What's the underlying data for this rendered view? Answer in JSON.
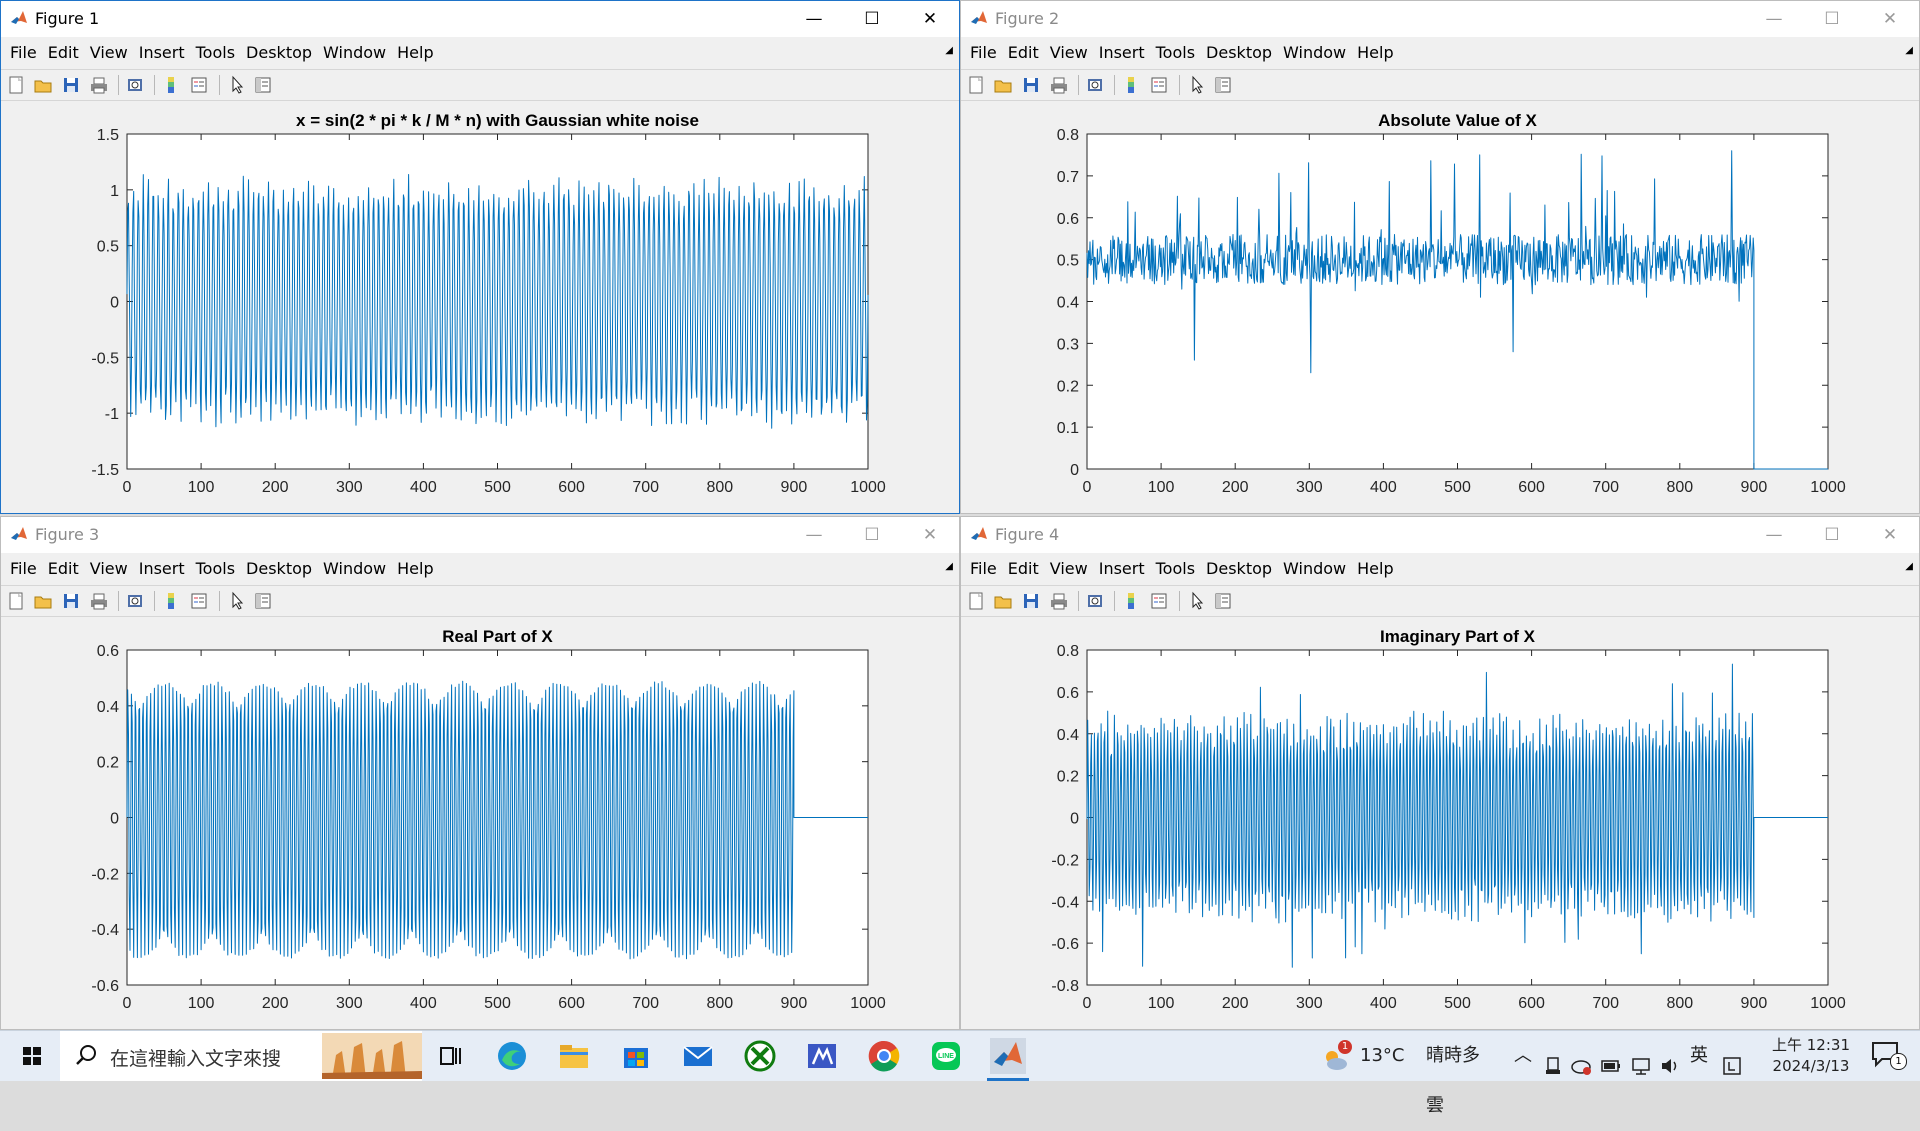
{
  "figures": [
    {
      "title": "Figure 1",
      "active": true,
      "plot_title": "x = sin(2 * pi * k / M * n) with Gaussian white noise"
    },
    {
      "title": "Figure 2",
      "active": false,
      "plot_title": "Absolute Value of X"
    },
    {
      "title": "Figure 3",
      "active": false,
      "plot_title": "Real Part of X"
    },
    {
      "title": "Figure 4",
      "active": false,
      "plot_title": "Imaginary Part of X"
    }
  ],
  "menu": [
    "File",
    "Edit",
    "View",
    "Insert",
    "Tools",
    "Desktop",
    "Window",
    "Help"
  ],
  "toolbar_icons": [
    "new-figure-icon",
    "open-file-icon",
    "save-icon",
    "print-icon",
    "print-preview-icon",
    "colorbar-icon",
    "legend-icon",
    "select-cursor-icon",
    "property-inspector-icon"
  ],
  "window_controls": {
    "minimize": "—",
    "maximize": "☐",
    "close": "✕"
  },
  "chart_data": [
    {
      "type": "line",
      "title": "x = sin(2 * pi * k / M * n) with Gaussian white noise",
      "xlim": [
        0,
        1000
      ],
      "ylim": [
        -1.5,
        1.5
      ],
      "xticks": [
        0,
        100,
        200,
        300,
        400,
        500,
        600,
        700,
        800,
        900,
        1000
      ],
      "yticks": [
        -1.5,
        -1,
        -0.5,
        0,
        0.5,
        1,
        1.5
      ],
      "series": [
        {
          "description": "dense noisy sinusoid spanning n = 0..1000, peaks roughly ±1 with noise reaching about ±1.2",
          "x_range": [
            0,
            1000
          ],
          "envelope_max": 1.0,
          "noise_max": 1.22,
          "color": "#0072bd"
        }
      ]
    },
    {
      "type": "line",
      "title": "Absolute Value of X",
      "xlim": [
        0,
        1000
      ],
      "ylim": [
        0,
        0.8
      ],
      "xticks": [
        0,
        100,
        200,
        300,
        400,
        500,
        600,
        700,
        800,
        900,
        1000
      ],
      "yticks": [
        0,
        0.1,
        0.2,
        0.3,
        0.4,
        0.5,
        0.6,
        0.7,
        0.8
      ],
      "series": [
        {
          "description": "noisy magnitude around 0.5 for n = 0..900, then 0 for n = 900..1000",
          "x_range": [
            0,
            900
          ],
          "baseline": 0.5,
          "min_spikes": [
            [
              145,
              0.26
            ],
            [
              302,
              0.23
            ],
            [
              575,
              0.28
            ]
          ],
          "max_spikes": [
            [
              530,
              0.75
            ],
            [
              870,
              0.76
            ]
          ],
          "zero_after": 900,
          "color": "#0072bd"
        }
      ]
    },
    {
      "type": "line",
      "title": "Real Part of X",
      "xlim": [
        0,
        1000
      ],
      "ylim": [
        -0.6,
        0.6
      ],
      "xticks": [
        0,
        100,
        200,
        300,
        400,
        500,
        600,
        700,
        800,
        900,
        1000
      ],
      "yticks": [
        -0.6,
        -0.4,
        -0.2,
        0,
        0.2,
        0.4,
        0.6
      ],
      "series": [
        {
          "description": "dense oscillation between about -0.5 and 0.48 for n = 0..900, then 0",
          "x_range": [
            0,
            900
          ],
          "upper": 0.48,
          "lower": -0.5,
          "zero_after": 900,
          "color": "#0072bd"
        }
      ]
    },
    {
      "type": "line",
      "title": "Imaginary Part of X",
      "xlim": [
        0,
        1000
      ],
      "ylim": [
        -0.8,
        0.8
      ],
      "xticks": [
        0,
        100,
        200,
        300,
        400,
        500,
        600,
        700,
        800,
        900,
        1000
      ],
      "yticks": [
        -0.8,
        -0.6,
        -0.4,
        -0.2,
        0,
        0.2,
        0.4,
        0.6,
        0.8
      ],
      "series": [
        {
          "description": "dense noisy oscillation mostly within ±0.5 with peaks up to about ±0.75 for n = 0..900, then 0",
          "x_range": [
            0,
            900
          ],
          "envelope_max": 0.45,
          "noise_max": 0.75,
          "zero_after": 900,
          "color": "#0072bd"
        }
      ]
    }
  ],
  "taskbar": {
    "search_placeholder": "在這裡輸入文字來搜",
    "weather_temp": "13°C",
    "weather_desc": "晴時多雲",
    "ime": "英",
    "time": "上午 12:31",
    "date": "2024/3/13",
    "weather_badge": "1",
    "notification_count": "1",
    "apps": [
      "windows-start-icon",
      "search-icon",
      "task-view-icon",
      "edge-icon",
      "file-explorer-icon",
      "store-icon",
      "mail-icon",
      "xbox-icon",
      "matlab-editor-icon",
      "chrome-icon",
      "line-icon",
      "matlab-icon"
    ]
  }
}
